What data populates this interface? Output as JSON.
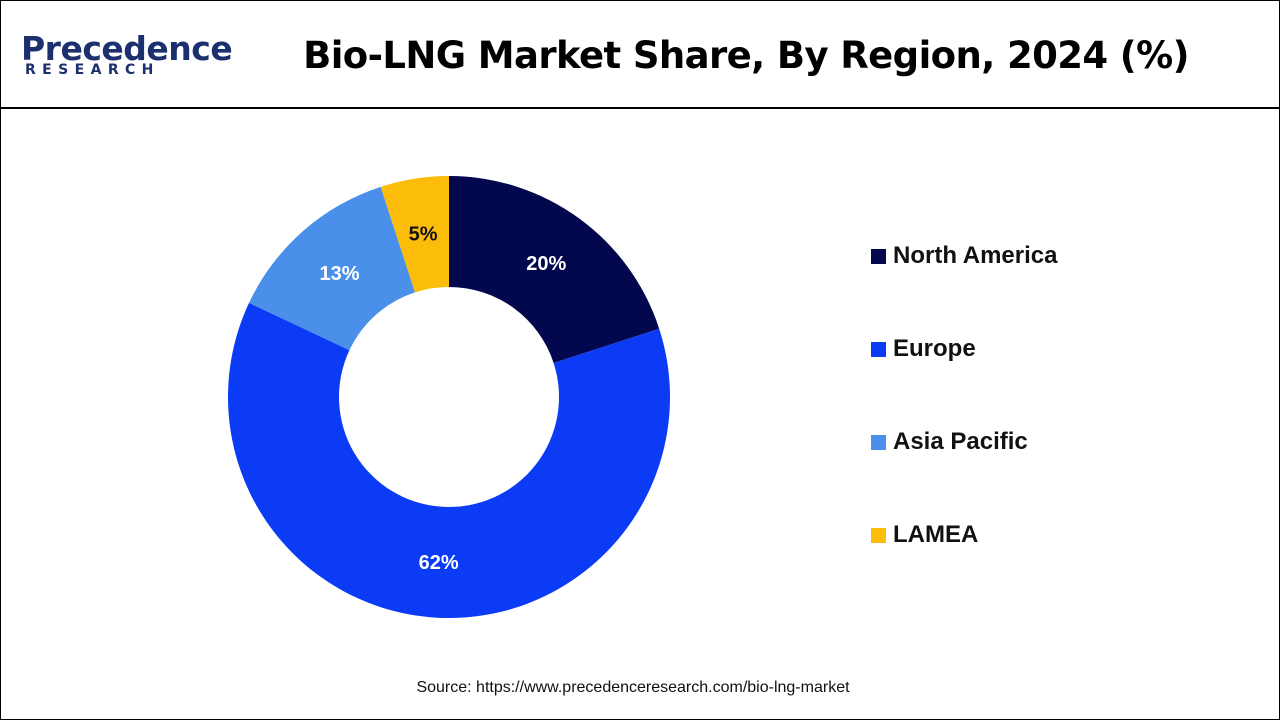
{
  "header": {
    "logo_word": "Precedence",
    "logo_sub": "RESEARCH",
    "title": "Bio-LNG Market Share, By Region, 2024 (%)"
  },
  "colors": {
    "North America": "#03074d",
    "Europe": "#0b3bf5",
    "Asia Pacific": "#4a90ea",
    "LAMEA": "#fbbc0a",
    "logo": "#1c2f6e"
  },
  "chart_data": {
    "type": "pie",
    "variant": "donut",
    "title": "Bio-LNG Market Share, By Region, 2024 (%)",
    "categories": [
      "North America",
      "Europe",
      "Asia Pacific",
      "LAMEA"
    ],
    "values": [
      20,
      62,
      13,
      5
    ],
    "labels": [
      "20%",
      "62%",
      "13%",
      "5%"
    ],
    "legend_position": "right"
  },
  "source": "Source: https://www.precedenceresearch.com/bio-lng-market"
}
